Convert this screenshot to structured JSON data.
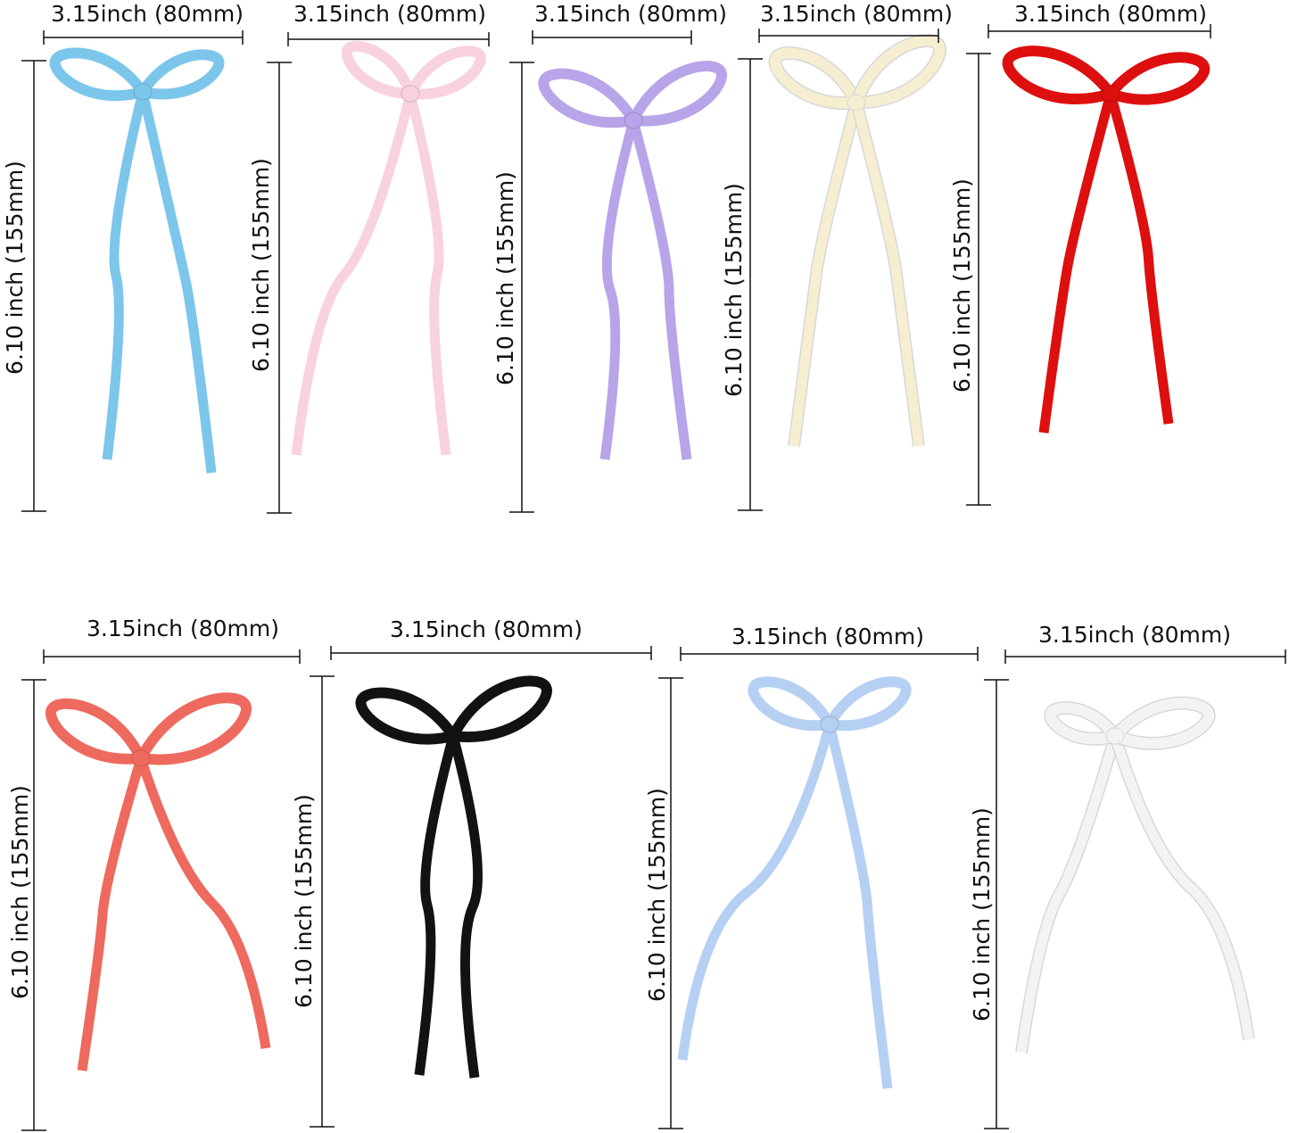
{
  "panels": [
    {
      "ribbon_color": "#7cc6ec",
      "width_label": "3.15inch  (80mm)",
      "height_label": "6.10 inch  (155mm)"
    },
    {
      "ribbon_color": "#f8d2dc",
      "width_label": "3.15inch  (80mm)",
      "height_label": "6.10 inch  (155mm)"
    },
    {
      "ribbon_color": "#b8a4e8",
      "width_label": "3.15inch  (80mm)",
      "height_label": "6.10 inch  (155mm)"
    },
    {
      "ribbon_color": "#f5eed0",
      "width_label": "3.15inch  (80mm)",
      "height_label": "6.10 inch  (155mm)"
    },
    {
      "ribbon_color": "#dd0f0f",
      "width_label": "3.15inch  (80mm)",
      "height_label": "6.10 inch  (155mm)"
    },
    {
      "ribbon_color": "#ee6a5e",
      "width_label": "3.15inch  (80mm)",
      "height_label": "6.10 inch  (155mm)"
    },
    {
      "ribbon_color": "#121212",
      "width_label": "3.15inch  (80mm)",
      "height_label": "6.10 inch  (155mm)"
    },
    {
      "ribbon_color": "#b6d0f3",
      "width_label": "3.15inch  (80mm)",
      "height_label": "6.10 inch  (155mm)"
    },
    {
      "ribbon_color": "#f3f3f3",
      "width_label": "3.15inch  (80mm)",
      "height_label": "6.10 inch  (155mm)"
    }
  ]
}
